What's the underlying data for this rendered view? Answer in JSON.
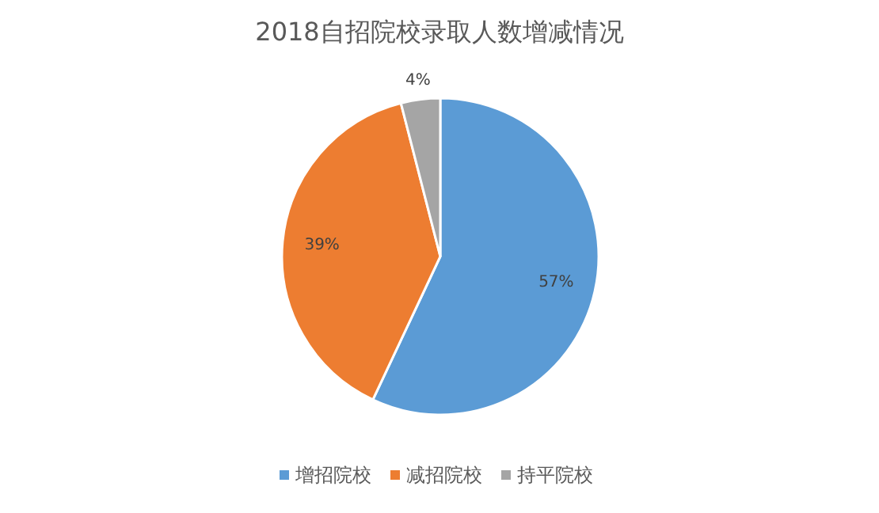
{
  "chart_data": {
    "type": "pie",
    "title": "2018自招院校录取人数增减情况",
    "categories": [
      "增招院校",
      "减招院校",
      "持平院校"
    ],
    "values": [
      57,
      39,
      4
    ],
    "colors": [
      "#5b9bd5",
      "#ed7d31",
      "#a5a5a5"
    ],
    "value_labels": [
      "57%",
      "39%",
      "4%"
    ],
    "legend": "bottom"
  }
}
